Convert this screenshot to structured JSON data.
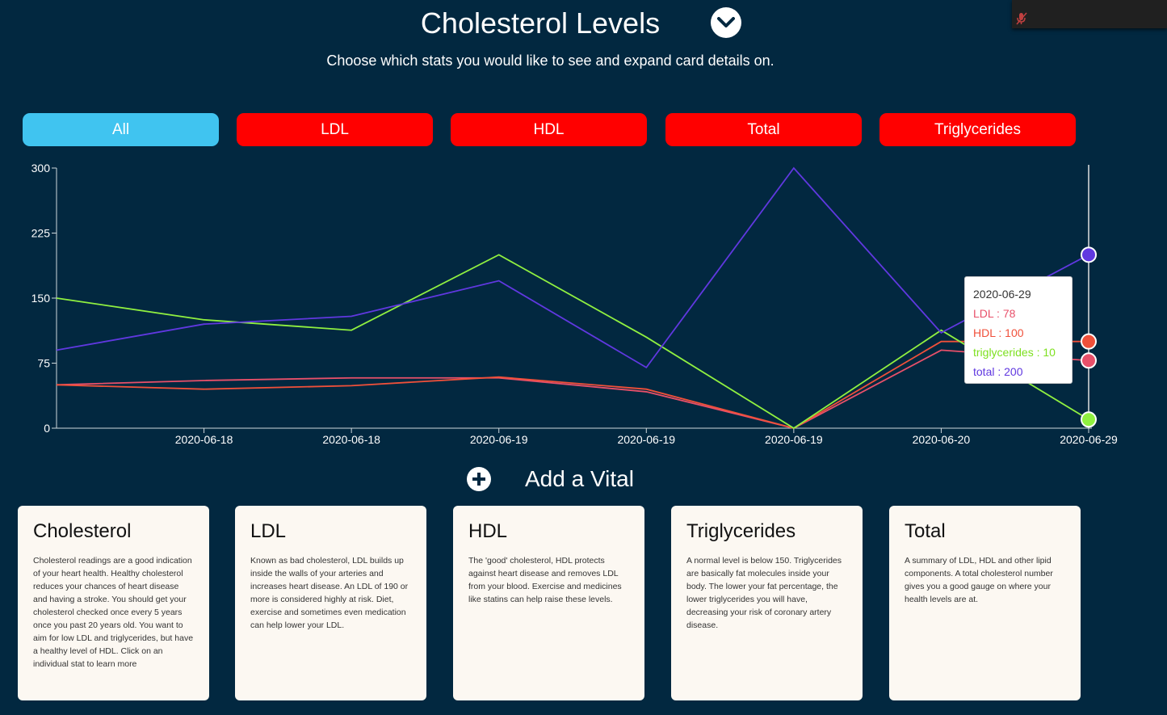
{
  "header": {
    "title": "Cholesterol Levels",
    "subtitle": "Choose which stats you would like to see and expand card details on."
  },
  "filters": [
    {
      "label": "All",
      "active": true
    },
    {
      "label": "LDL",
      "active": false
    },
    {
      "label": "HDL",
      "active": false
    },
    {
      "label": "Total",
      "active": false
    },
    {
      "label": "Triglycerides",
      "active": false
    }
  ],
  "colors": {
    "background": "#022840",
    "active_filter": "#40c4f0",
    "inactive_filter": "#ff0000",
    "ldl": "#e8506a",
    "hdl": "#f0503a",
    "triglycerides": "#90f040",
    "total": "#6038e0"
  },
  "chart_data": {
    "type": "line",
    "categories": [
      "",
      "2020-06-18",
      "2020-06-18",
      "2020-06-19",
      "2020-06-19",
      "2020-06-19",
      "2020-06-20",
      "2020-06-29"
    ],
    "yticks": [
      "0",
      "75",
      "150",
      "225",
      "300"
    ],
    "ylim": [
      0,
      300
    ],
    "grid": false,
    "series": [
      {
        "key": "ldl",
        "values": [
          50,
          55,
          58,
          58,
          42,
          0,
          90,
          78
        ]
      },
      {
        "key": "hdl",
        "values": [
          50,
          45,
          49,
          59,
          45,
          0,
          100,
          100
        ]
      },
      {
        "key": "triglycerides",
        "values": [
          150,
          125,
          113,
          200,
          105,
          0,
          113,
          10
        ]
      },
      {
        "key": "total",
        "values": [
          90,
          120,
          129,
          170,
          70,
          300,
          110,
          200
        ]
      }
    ]
  },
  "tooltip": {
    "date": "2020-06-29",
    "ldl": "LDL : 78",
    "hdl": "HDL : 100",
    "triglycerides": "triglycerides : 10",
    "total": "total : 200"
  },
  "add_vital": {
    "label": "Add a Vital"
  },
  "cards": [
    {
      "title": "Cholesterol",
      "text": "Cholesterol readings are a good indication of your heart health. Healthy cholesterol reduces your chances of heart disease and having a stroke. You should get your cholesterol checked once every 5 years once you past 20 years old. You want to aim for low LDL and triglycerides, but have a healthy level of HDL. Click on an individual stat to learn more"
    },
    {
      "title": "LDL",
      "text": "Known as bad cholesterol, LDL builds up inside the walls of your arteries and increases heart disease. An LDL of 190 or more is considered highly at risk. Diet, exercise and sometimes even medication can help lower your LDL."
    },
    {
      "title": "HDL",
      "text": "The 'good' cholesterol, HDL protects against heart disease and removes LDL from your blood. Exercise and medicines like statins can help raise these levels."
    },
    {
      "title": "Triglycerides",
      "text": "A normal level is below 150. Triglycerides are basically fat molecules inside your body. The lower your fat percentage, the lower triglycerides you will have, decreasing your risk of coronary artery disease."
    },
    {
      "title": "Total",
      "text": "A summary of LDL, HDL and other lipid components. A total cholesterol number gives you a good gauge on where your health levels are at."
    }
  ]
}
